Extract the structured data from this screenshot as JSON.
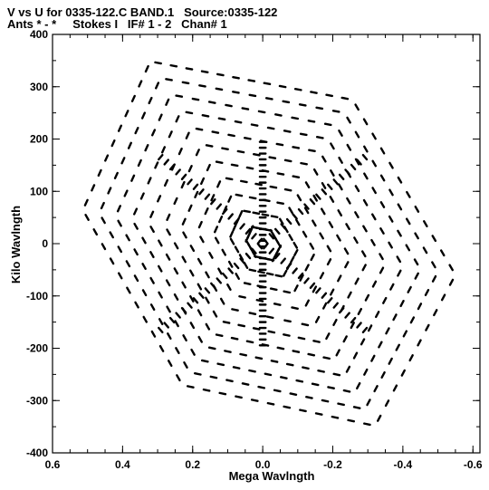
{
  "header": {
    "line1": "V vs U for 0335-122.C BAND.1   Source:0335-122",
    "line2": "Ants * - *     Stokes I   IF# 1 - 2   Chan# 1"
  },
  "chart_data": {
    "type": "scatter",
    "xlabel": "Mega Wavlngth",
    "ylabel": "Kilo Wavlngth",
    "xlim": [
      0.6,
      -0.62
    ],
    "ylim": [
      -400,
      400
    ],
    "x_ticks": [
      "0.6",
      "0.4",
      "0.2",
      "0.0",
      "-0.2",
      "-0.4",
      "-0.6"
    ],
    "x_tick_values": [
      0.6,
      0.4,
      0.2,
      0.0,
      -0.2,
      -0.4,
      -0.6
    ],
    "y_ticks": [
      "400",
      "300",
      "200",
      "100",
      "0",
      "-100",
      "-200",
      "-300",
      "-400"
    ],
    "y_tick_values": [
      400,
      300,
      200,
      100,
      0,
      -100,
      -200,
      -300,
      -400
    ],
    "tracks": {
      "description_hidden": true,
      "arm_angles_deg": [
        0,
        60,
        120,
        180,
        240,
        300
      ],
      "max_u_uv": [
        0.55,
        0.6
      ],
      "max_v_uv": 380
    },
    "colors": {
      "points": "#000000",
      "axes": "#000000"
    }
  }
}
